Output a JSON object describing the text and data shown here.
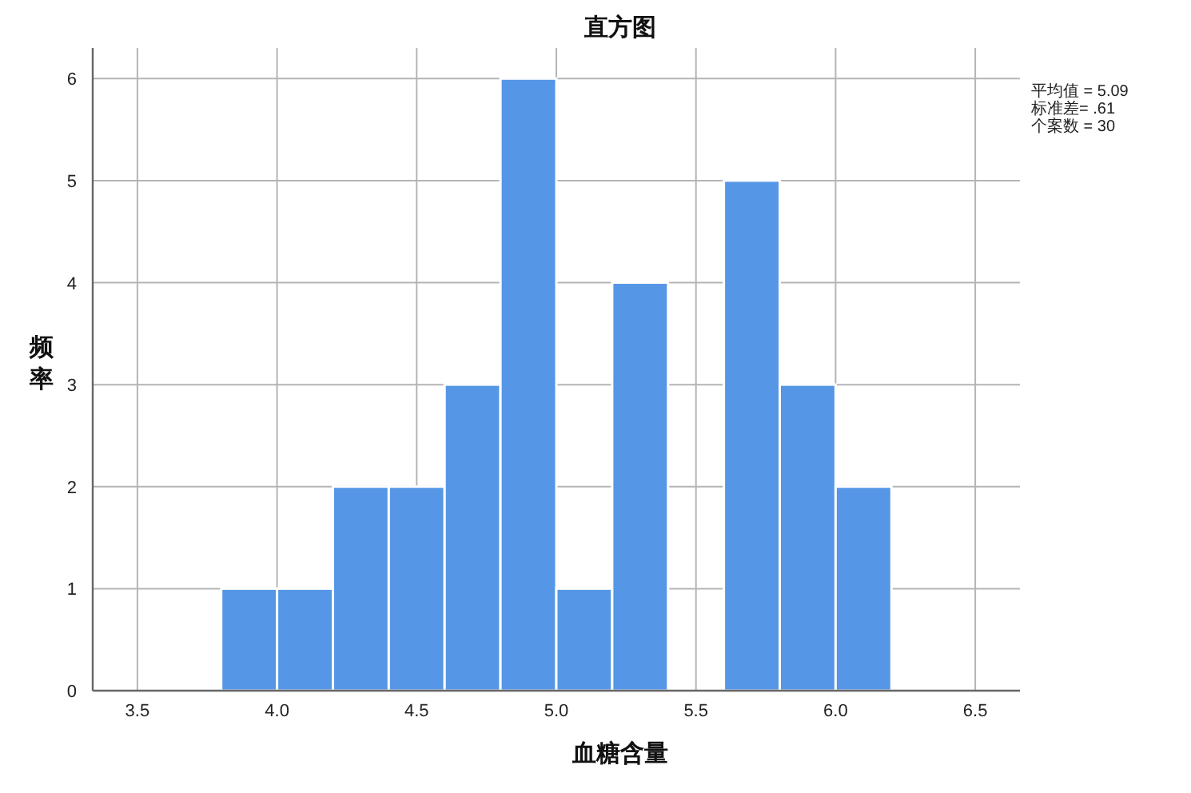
{
  "chart_data": {
    "type": "histogram",
    "title": "直方图",
    "xlabel": "血糖含量",
    "ylabel": "频率",
    "bins": [
      3.8,
      4.0,
      4.2,
      4.4,
      4.6,
      4.8,
      5.0,
      5.2,
      5.4,
      5.6,
      5.8,
      6.0,
      6.2
    ],
    "values": [
      1,
      1,
      2,
      2,
      3,
      6,
      1,
      4,
      0,
      5,
      3,
      2
    ],
    "color": "#5596e6",
    "xlim": [
      3.34,
      6.66
    ],
    "ylim": [
      0,
      6.3
    ],
    "xticks": [
      3.5,
      {
        "value": 4,
        "label": "4.0"
      },
      4.5,
      {
        "value": 5,
        "label": "5.0"
      },
      5.5,
      {
        "value": 6,
        "label": "6.0"
      },
      6.5
    ],
    "yticks": [
      0,
      1,
      2,
      3,
      4,
      5,
      6
    ],
    "grid": true,
    "annotations": [
      "平均值 = 5.09",
      "标准差= .61",
      "个案数 = 30"
    ]
  }
}
